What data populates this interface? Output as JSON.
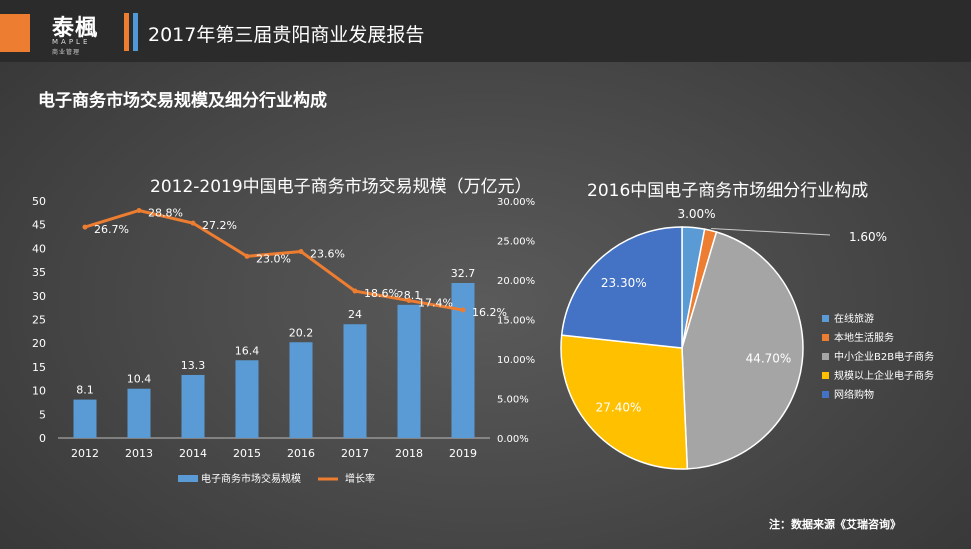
{
  "header": {
    "logo_cn": "泰楓",
    "logo_en": "MAPLE",
    "logo_sub": "商业管理",
    "title": "2017年第三届贵阳商业发展报告"
  },
  "section_title": "电子商务市场交易规模及细分行业构成",
  "note": "注：数据来源《艾瑞咨询》",
  "colors": {
    "bar": "#5b9bd5",
    "line": "#ed7d31",
    "pie": [
      "#5b9bd5",
      "#ed7d31",
      "#a5a5a5",
      "#ffc000",
      "#4472c4"
    ]
  },
  "chart_data": [
    {
      "type": "bar",
      "title": "2012-2019中国电子商务市场交易规模（万亿元）",
      "categories": [
        "2012",
        "2013",
        "2014",
        "2015",
        "2016",
        "2017",
        "2018",
        "2019"
      ],
      "series": [
        {
          "name": "电子商务市场交易规模",
          "type": "bar",
          "axis": "left",
          "values": [
            8.1,
            10.4,
            13.3,
            16.4,
            20.2,
            24,
            28.1,
            32.7
          ],
          "labels": [
            "8.1",
            "10.4",
            "13.3",
            "16.4",
            "20.2",
            "24",
            "28.1",
            "32.7"
          ]
        },
        {
          "name": "增长率",
          "type": "line",
          "axis": "right",
          "values": [
            26.7,
            28.8,
            27.2,
            23.0,
            23.6,
            18.6,
            17.4,
            16.2
          ],
          "labels": [
            "26.7%",
            "28.8%",
            "27.2%",
            "23.0%",
            "23.6%",
            "18.6%",
            "17.4%",
            "16.2%"
          ]
        }
      ],
      "ylim_left": [
        0,
        50
      ],
      "yticks_left": [
        "0",
        "5",
        "10",
        "15",
        "20",
        "25",
        "30",
        "35",
        "40",
        "45",
        "50"
      ],
      "ylim_right": [
        0,
        30
      ],
      "yticks_right": [
        "0.00%",
        "5.00%",
        "10.00%",
        "15.00%",
        "20.00%",
        "25.00%",
        "30.00%"
      ],
      "legend": "bottom",
      "grid": false
    },
    {
      "type": "pie",
      "title": "2016中国电子商务市场细分行业构成",
      "categories": [
        "在线旅游",
        "本地生活服务",
        "中小企业B2B电子商务",
        "规模以上企业电子商务",
        "网络购物"
      ],
      "values": [
        3.0,
        1.6,
        44.7,
        27.4,
        23.3
      ],
      "labels": [
        "3.00%",
        "1.60%",
        "44.70%",
        "27.40%",
        "23.30%"
      ],
      "legend": "right"
    }
  ]
}
